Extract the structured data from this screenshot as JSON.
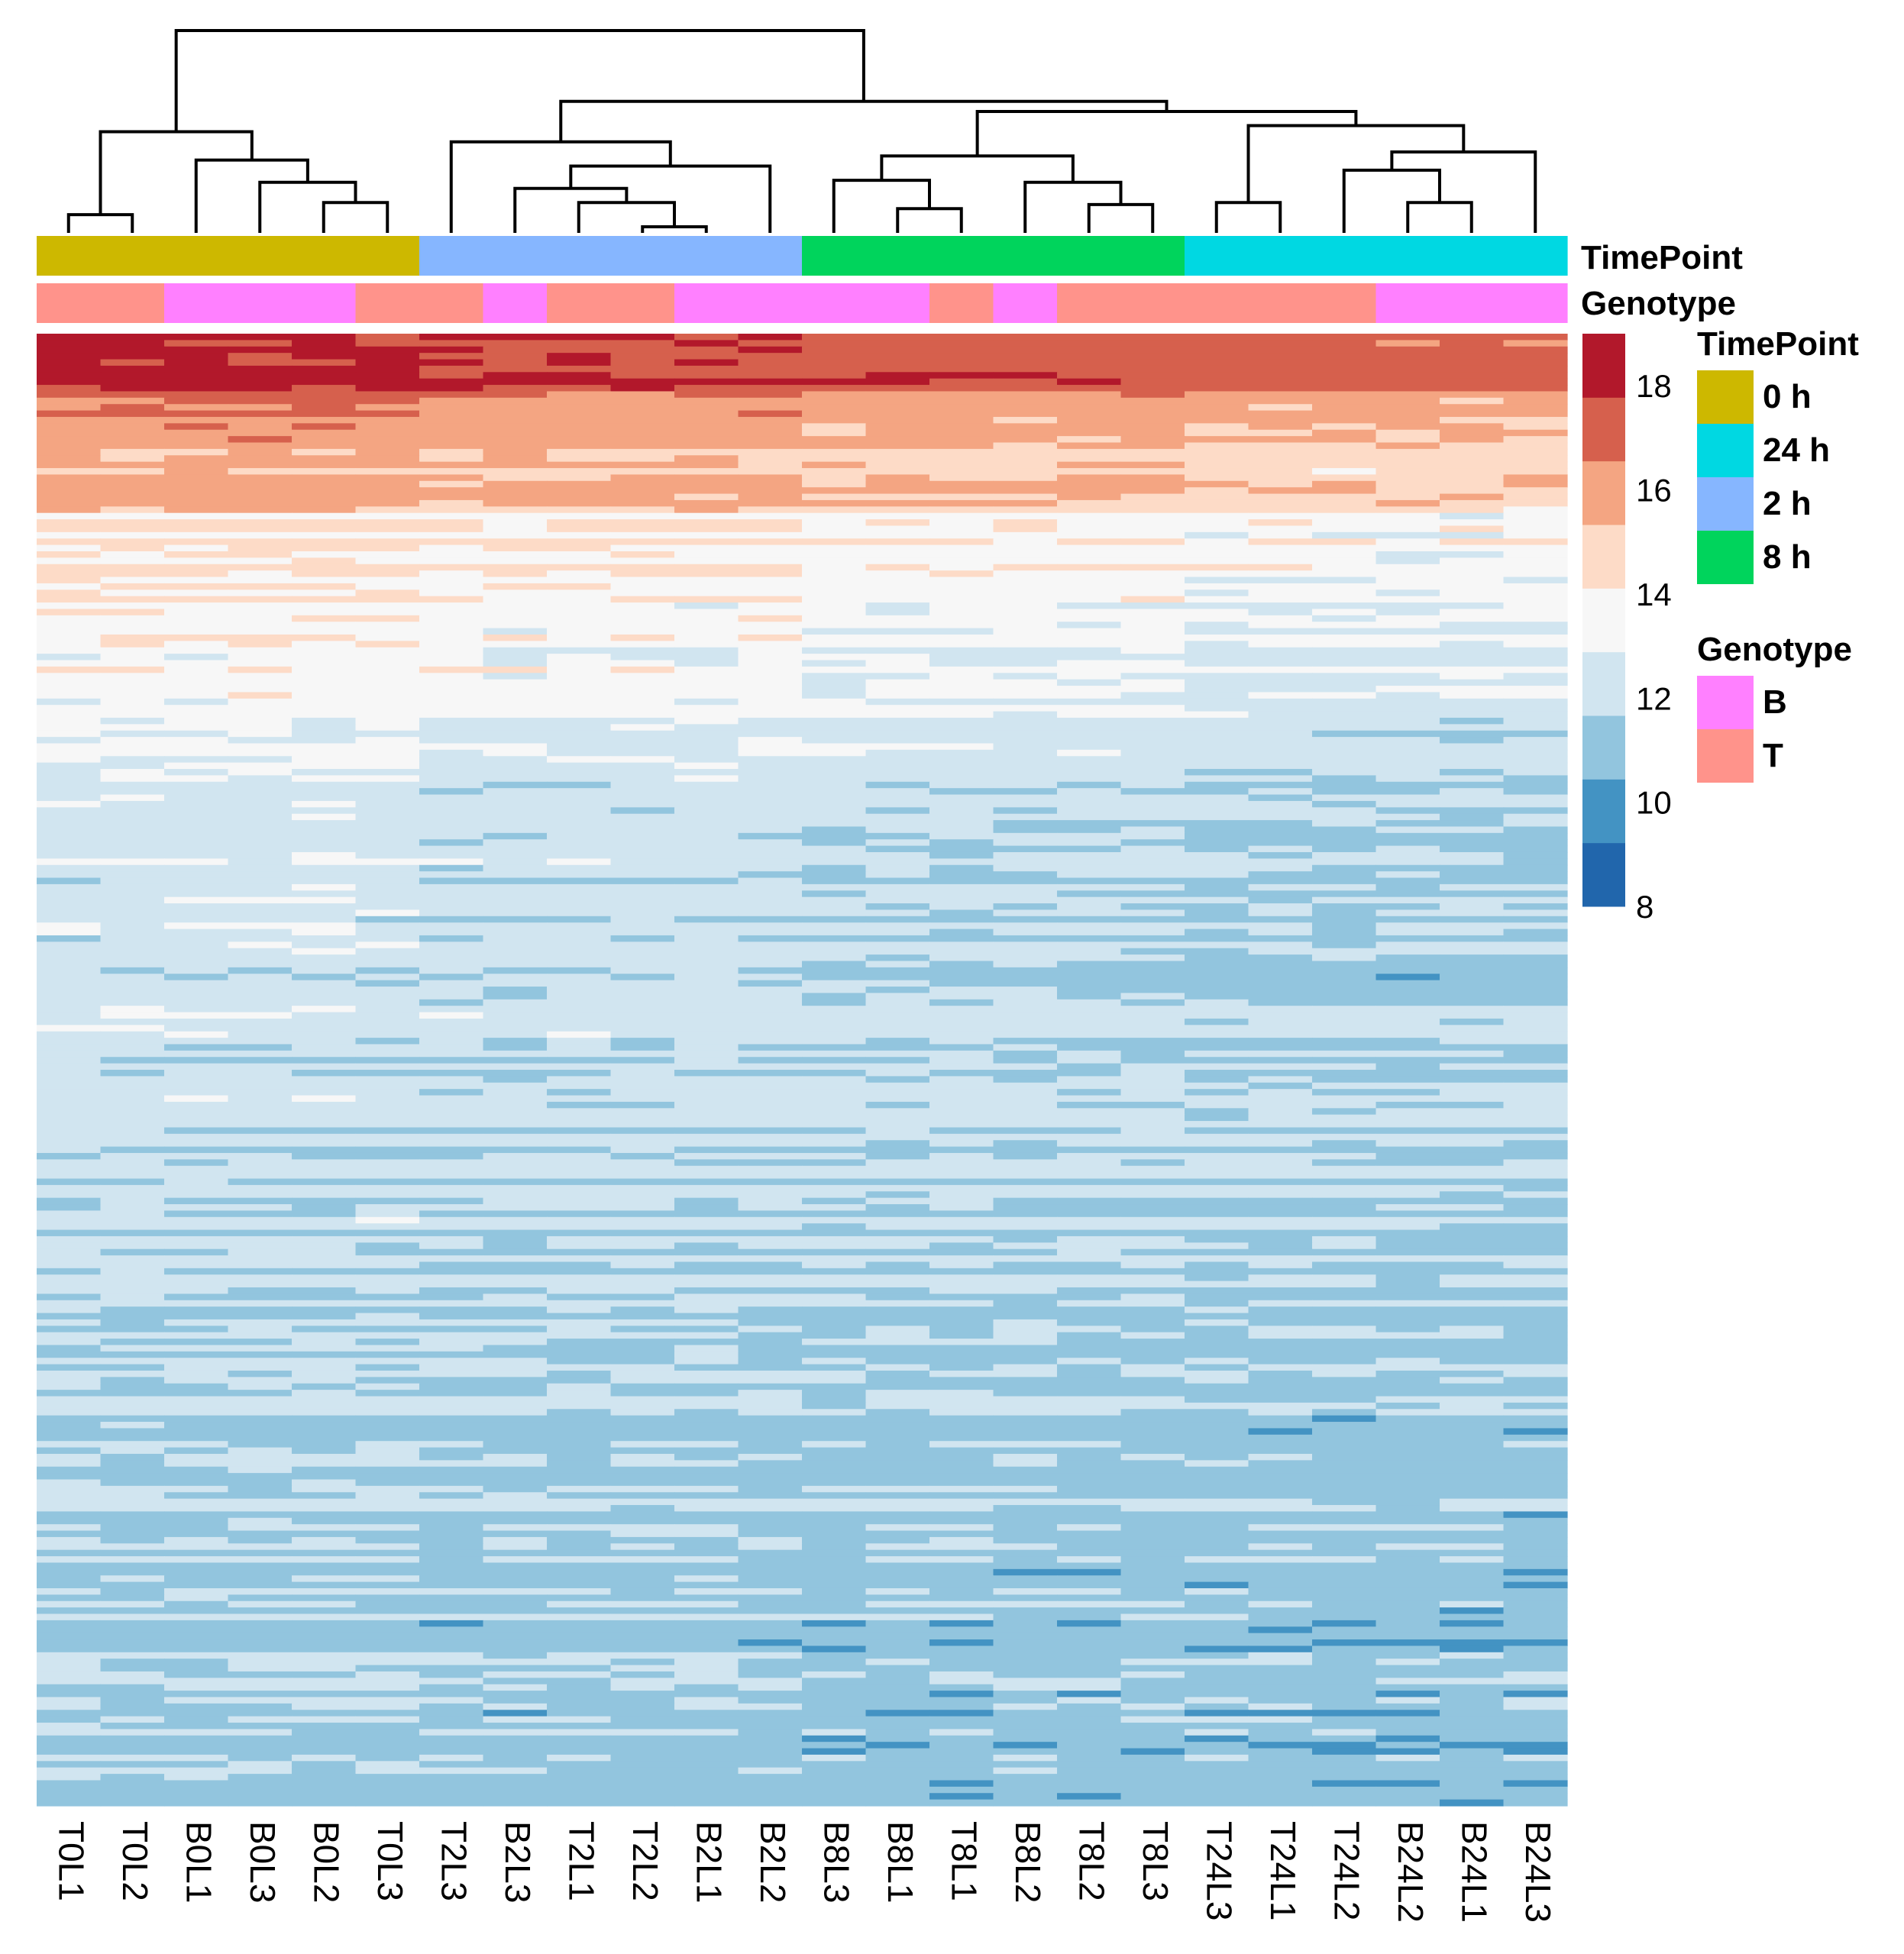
{
  "chart_data": {
    "type": "heatmap",
    "columns": [
      "T0L1",
      "T0L2",
      "B0L1",
      "B0L3",
      "B0L2",
      "T0L3",
      "T2L3",
      "B2L3",
      "T2L1",
      "T2L2",
      "B2L1",
      "B2L2",
      "B8L3",
      "B8L1",
      "T8L1",
      "B8L2",
      "T8L2",
      "T8L3",
      "T24L3",
      "T24L1",
      "T24L2",
      "B24L2",
      "B24L1",
      "B24L3"
    ],
    "timepoint": [
      "0 h",
      "0 h",
      "0 h",
      "0 h",
      "0 h",
      "0 h",
      "2 h",
      "2 h",
      "2 h",
      "2 h",
      "2 h",
      "2 h",
      "8 h",
      "8 h",
      "8 h",
      "8 h",
      "8 h",
      "8 h",
      "24 h",
      "24 h",
      "24 h",
      "24 h",
      "24 h",
      "24 h"
    ],
    "genotype": [
      "T",
      "T",
      "B",
      "B",
      "B",
      "T",
      "T",
      "B",
      "T",
      "T",
      "B",
      "B",
      "B",
      "B",
      "T",
      "B",
      "T",
      "T",
      "T",
      "T",
      "T",
      "B",
      "B",
      "B"
    ],
    "annotation_tracks": [
      "TimePoint",
      "Genotype"
    ],
    "legend_timepoint": {
      "title": "TimePoint",
      "items": [
        {
          "label": "0 h",
          "color": "#CDB800"
        },
        {
          "label": "24 h",
          "color": "#00D8E2"
        },
        {
          "label": "2 h",
          "color": "#86B6FF"
        },
        {
          "label": "8 h",
          "color": "#00D45C"
        }
      ]
    },
    "legend_genotype": {
      "title": "Genotype",
      "items": [
        {
          "label": "B",
          "color": "#FF80FF"
        },
        {
          "label": "T",
          "color": "#FF938B"
        }
      ]
    },
    "color_scale": {
      "ticks": [
        "18",
        "16",
        "14",
        "12",
        "10",
        "8"
      ],
      "range": [
        8,
        19
      ],
      "colors": [
        "#2166AC",
        "#4393C3",
        "#92C5DE",
        "#D1E5F0",
        "#F7F7F7",
        "#FDDBC7",
        "#F4A582",
        "#D6604D",
        "#B2182B"
      ]
    },
    "n_rows": 230,
    "dendrogram": {
      "merges": [
        [
          0,
          1
        ],
        [
          4,
          5
        ],
        [
          3,
          -2
        ],
        [
          2,
          -3
        ],
        [
          -1,
          -4
        ],
        [
          9,
          10
        ],
        [
          8,
          -6
        ],
        [
          7,
          -7
        ],
        [
          11,
          -8
        ],
        [
          6,
          -9
        ],
        [
          13,
          14
        ],
        [
          12,
          -11
        ],
        [
          16,
          17
        ],
        [
          15,
          -13
        ],
        [
          -12,
          -14
        ],
        [
          18,
          19
        ],
        [
          21,
          22
        ],
        [
          20,
          -17
        ],
        [
          23,
          -18
        ],
        [
          -16,
          -19
        ],
        [
          -15,
          -20
        ],
        [
          -10,
          -21
        ],
        [
          -5,
          -22
        ]
      ],
      "heights": [
        0.09,
        0.15,
        0.25,
        0.36,
        0.5,
        0.03,
        0.15,
        0.22,
        0.33,
        0.45,
        0.12,
        0.26,
        0.14,
        0.25,
        0.38,
        0.15,
        0.15,
        0.31,
        0.4,
        0.53,
        0.6,
        0.65,
        1.0
      ]
    }
  }
}
